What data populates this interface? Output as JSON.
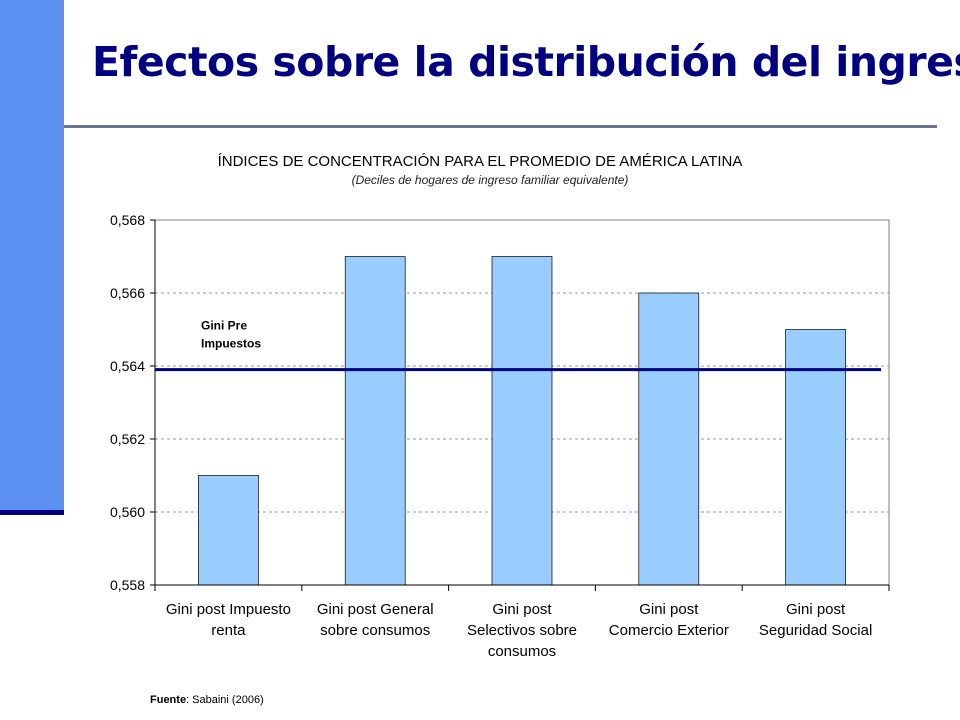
{
  "slide": {
    "title": "Efectos sobre la distribución del ingreso",
    "source_label": "Fuente",
    "source_text": ": Sabaini (2006)"
  },
  "colors": {
    "accent_bar": "#5b8ff0",
    "title": "#000080",
    "bar_fill": "#99ccff",
    "reference_line": "#000080"
  },
  "chart_data": {
    "type": "bar",
    "title": "ÍNDICES DE CONCENTRACIÓN PARA EL PROMEDIO DE AMÉRICA LATINA",
    "subtitle": "(Deciles de hogares de ingreso familiar equivalente)",
    "categories": [
      [
        "Gini post Impuesto",
        "renta"
      ],
      [
        "Gini post General",
        "sobre consumos"
      ],
      [
        "Gini post",
        "Selectivos sobre",
        "consumos"
      ],
      [
        "Gini post",
        "Comercio Exterior"
      ],
      [
        "Gini post",
        "Seguridad Social"
      ]
    ],
    "values": [
      0.561,
      0.567,
      0.567,
      0.566,
      0.565
    ],
    "ylim": [
      0.558,
      0.568
    ],
    "yticks": [
      0.558,
      0.56,
      0.562,
      0.564,
      0.566,
      0.568
    ],
    "ytick_labels": [
      "0,558",
      "0,560",
      "0,562",
      "0,564",
      "0,566",
      "0,568"
    ],
    "grid": true,
    "reference_line": {
      "value": 0.5639,
      "label": [
        "Gini Pre",
        "Impuestos"
      ]
    }
  }
}
